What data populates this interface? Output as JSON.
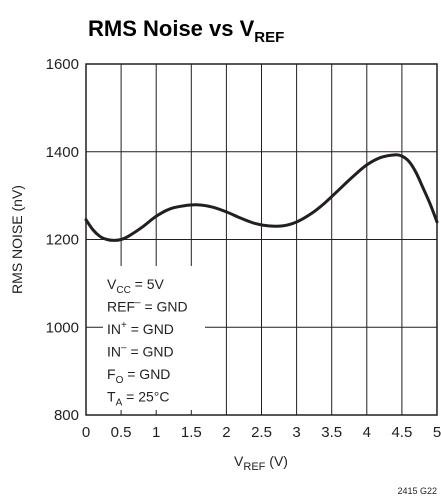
{
  "chart_data": {
    "type": "line",
    "title": "RMS Noise vs V",
    "title_subscript": "REF",
    "xlabel": "V",
    "xlabel_subscript": "REF",
    "xlabel_suffix": " (V)",
    "ylabel": "RMS NOISE (nV)",
    "xlim": [
      0,
      5
    ],
    "ylim": [
      800,
      1600
    ],
    "x_ticks": [
      0,
      0.5,
      1,
      1.5,
      2,
      2.5,
      3,
      3.5,
      4,
      4.5,
      5
    ],
    "x_tick_labels": [
      "0",
      "0.5",
      "1",
      "1.5",
      "2",
      "2.5",
      "3",
      "3.5",
      "4",
      "4.5",
      "5"
    ],
    "y_ticks": [
      800,
      1000,
      1200,
      1400,
      1600
    ],
    "y_tick_labels": [
      "800",
      "1000",
      "1200",
      "1400",
      "1600"
    ],
    "grid": true,
    "legend": "none",
    "line_color": "#231f20",
    "series": [
      {
        "x": [
          0,
          0.1,
          0.2,
          0.3,
          0.4,
          0.5,
          0.6,
          0.8,
          1.0,
          1.2,
          1.4,
          1.6,
          1.8,
          2.0,
          2.2,
          2.4,
          2.6,
          2.8,
          3.0,
          3.2,
          3.4,
          3.6,
          3.8,
          4.0,
          4.2,
          4.4,
          4.5,
          4.6,
          4.7,
          4.8,
          4.9,
          5.0
        ],
        "y": [
          1245,
          1222,
          1207,
          1200,
          1198,
          1200,
          1207,
          1228,
          1253,
          1270,
          1277,
          1279,
          1274,
          1263,
          1249,
          1237,
          1231,
          1231,
          1240,
          1258,
          1283,
          1313,
          1343,
          1370,
          1387,
          1393,
          1390,
          1378,
          1353,
          1318,
          1282,
          1240
        ]
      }
    ],
    "annotations": [
      {
        "main": "V",
        "sub": "CC",
        "sup": "",
        "rest": " = 5V"
      },
      {
        "main": "REF",
        "sub": "",
        "sup": "–",
        "rest": " = GND"
      },
      {
        "main": "IN",
        "sub": "",
        "sup": "+",
        "rest": " = GND"
      },
      {
        "main": "IN",
        "sub": "",
        "sup": "–",
        "rest": " = GND"
      },
      {
        "main": "F",
        "sub": "O",
        "sup": "",
        "rest": " = GND"
      },
      {
        "main": "T",
        "sub": "A",
        "sup": "",
        "rest": " = 25°C"
      }
    ],
    "figure_id": "2415 G22"
  }
}
